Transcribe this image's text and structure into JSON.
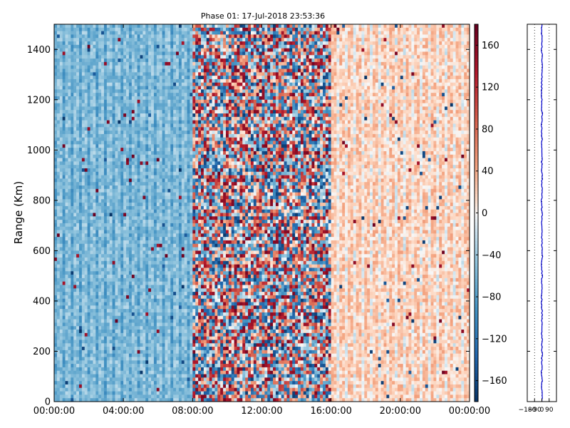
{
  "chart_data": [
    {
      "type": "heatmap",
      "title": "Phase 01: 17-Jul-2018 23:53:36",
      "xlabel": "",
      "ylabel": "Range (Km)",
      "x_ticks": [
        "00:00:00",
        "04:00:00",
        "08:00:00",
        "12:00:00",
        "16:00:00",
        "20:00:00",
        "00:00:00"
      ],
      "x_range_hours": [
        0,
        24
      ],
      "y_ticks": [
        0,
        200,
        400,
        600,
        800,
        1000,
        1200,
        1400
      ],
      "ylim": [
        0,
        1500
      ],
      "colorbar": {
        "colormap": "RdBu_r",
        "range": [
          -180,
          180
        ],
        "ticks": [
          160,
          120,
          80,
          40,
          0,
          -40,
          -80,
          -120,
          -160
        ],
        "tick_labels": [
          "160",
          "120",
          "80",
          "40",
          "0",
          "−40",
          "−80",
          "−120",
          "−160"
        ]
      },
      "phase_regimes": [
        {
          "from_hour": 0,
          "to_hour": 8,
          "typical_phase": -50,
          "spread": 25
        },
        {
          "from_hour": 8,
          "to_hour": 16,
          "typical_phase": 0,
          "spread": 170
        },
        {
          "from_hour": 16,
          "to_hour": 24,
          "typical_phase": 25,
          "spread": 25
        }
      ],
      "colors": {
        "low": "#053061",
        "mid": "#f7f7f7",
        "high": "#67001f"
      }
    },
    {
      "type": "line",
      "xlabel": "",
      "ylabel": "",
      "x_ticks": [
        -180,
        -90,
        0,
        90
      ],
      "x_tick_labels": [
        "−180",
        "−90",
        "0",
        "90"
      ],
      "xlim": [
        -180,
        180
      ],
      "ylim": [
        0,
        1500
      ],
      "grid": true,
      "series": [
        {
          "points": [
            [
              0,
              0
            ],
            [
              2,
              60
            ],
            [
              -3,
              120
            ],
            [
              1,
              180
            ],
            [
              4,
              240
            ],
            [
              -2,
              300
            ],
            [
              3,
              360
            ],
            [
              -4,
              420
            ],
            [
              2,
              480
            ],
            [
              0,
              540
            ],
            [
              5,
              600
            ],
            [
              -1,
              660
            ],
            [
              3,
              720
            ],
            [
              -3,
              780
            ],
            [
              1,
              840
            ],
            [
              4,
              900
            ],
            [
              -2,
              960
            ],
            [
              2,
              1020
            ],
            [
              -4,
              1080
            ],
            [
              3,
              1140
            ],
            [
              0,
              1200
            ],
            [
              -2,
              1260
            ],
            [
              4,
              1320
            ],
            [
              1,
              1380
            ],
            [
              -3,
              1440
            ],
            [
              2,
              1500
            ]
          ],
          "color": "#0000cc"
        }
      ]
    }
  ]
}
